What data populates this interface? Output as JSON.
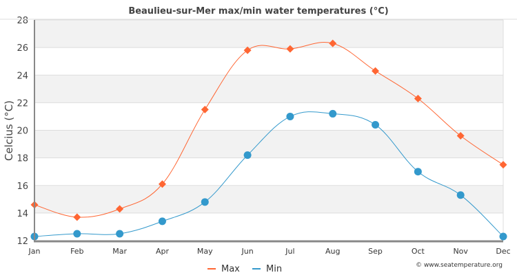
{
  "chart_data": {
    "type": "line",
    "title": "Beaulieu-sur-Mer max/min water temperatures (°C)",
    "xlabel": "",
    "ylabel": "Celcius (°C)",
    "categories": [
      "Jan",
      "Feb",
      "Mar",
      "Apr",
      "May",
      "Jun",
      "Jul",
      "Aug",
      "Sep",
      "Oct",
      "Nov",
      "Dec"
    ],
    "ylim": [
      12,
      28
    ],
    "yticks": [
      12,
      14,
      16,
      18,
      20,
      22,
      24,
      26,
      28
    ],
    "grid": true,
    "legend_position": "bottom-center",
    "series": [
      {
        "name": "Max",
        "color": "#ff6633",
        "marker": "diamond",
        "values": [
          14.6,
          13.7,
          14.3,
          16.1,
          21.5,
          25.8,
          25.9,
          26.3,
          24.3,
          22.3,
          19.6,
          17.5
        ]
      },
      {
        "name": "Min",
        "color": "#3399cc",
        "marker": "circle",
        "values": [
          12.3,
          12.5,
          12.5,
          13.4,
          14.8,
          18.2,
          21.0,
          21.2,
          20.4,
          17.0,
          15.3,
          12.3
        ]
      }
    ],
    "credit": "© www.seatemperature.org"
  }
}
